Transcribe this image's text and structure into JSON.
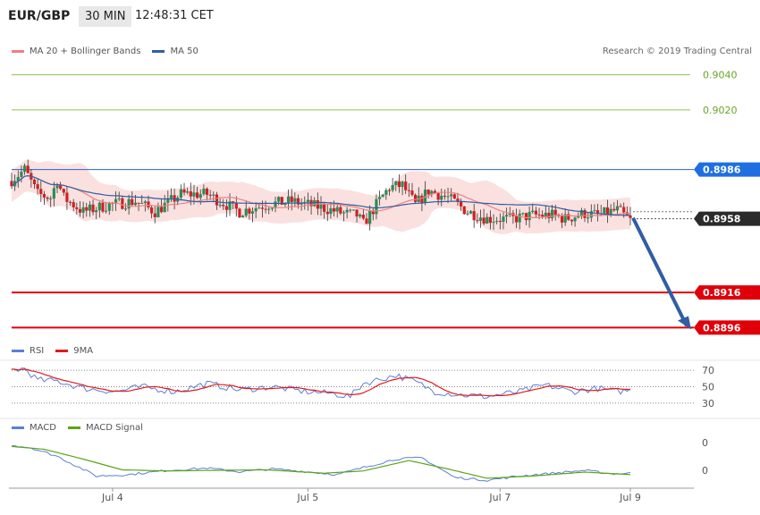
{
  "header": {
    "symbol": "EUR/GBP",
    "timeframe": "30 MIN",
    "time": "12:48:31 CET"
  },
  "legend_price": {
    "ma20_label": "MA 20 + Bollinger Bands",
    "ma50_label": "MA 50",
    "ma20_color": "#f08080",
    "ma50_color": "#2f5f9f"
  },
  "copyright": "Research © 2019 Trading Central",
  "legend_rsi": {
    "rsi_label": "RSI",
    "ma_label": "9MA",
    "rsi_color": "#5b7fd6",
    "ma_color": "#e21b1b"
  },
  "legend_macd": {
    "macd_label": "MACD",
    "signal_label": "MACD Signal",
    "macd_color": "#5b7fd6",
    "signal_color": "#5aa514"
  },
  "levels": {
    "green": [
      "0.9040",
      "0.9020"
    ],
    "blue": "0.8986",
    "current": "0.8958",
    "red": [
      "0.8916",
      "0.8896"
    ]
  },
  "rsi_ticks": [
    "70",
    "50",
    "30"
  ],
  "macd_ticks": [
    "0",
    "0"
  ],
  "x_ticks": [
    "Jul 4",
    "Jul 5",
    "Jul 7",
    "Jul 9"
  ],
  "chart_data": {
    "type": "candlestick",
    "title": "EUR/GBP 30 MIN",
    "y_range": [
      0.8884,
      0.9052
    ],
    "levels": {
      "resistance": [
        0.904,
        0.902
      ],
      "pivot": 0.8986,
      "last": 0.8958,
      "targets": [
        0.8916,
        0.8896
      ]
    },
    "close_anchors": [
      [
        0,
        0.898
      ],
      [
        4,
        0.8986
      ],
      [
        8,
        0.8972
      ],
      [
        12,
        0.897
      ],
      [
        14,
        0.898
      ],
      [
        16,
        0.897
      ],
      [
        22,
        0.8962
      ],
      [
        30,
        0.8966
      ],
      [
        38,
        0.8968
      ],
      [
        44,
        0.8962
      ],
      [
        52,
        0.8972
      ],
      [
        60,
        0.8972
      ],
      [
        70,
        0.8962
      ],
      [
        78,
        0.8966
      ],
      [
        86,
        0.8968
      ],
      [
        96,
        0.8964
      ],
      [
        102,
        0.8961
      ],
      [
        106,
        0.896
      ],
      [
        108,
        0.8955
      ],
      [
        112,
        0.8966
      ],
      [
        116,
        0.8976
      ],
      [
        120,
        0.8977
      ],
      [
        124,
        0.8966
      ],
      [
        128,
        0.8974
      ],
      [
        134,
        0.897
      ],
      [
        140,
        0.8962
      ],
      [
        146,
        0.8958
      ],
      [
        154,
        0.8958
      ],
      [
        160,
        0.896
      ],
      [
        166,
        0.896
      ],
      [
        170,
        0.8958
      ],
      [
        176,
        0.8961
      ],
      [
        180,
        0.896
      ],
      [
        186,
        0.8963
      ],
      [
        190,
        0.8957
      ]
    ],
    "rsi_y_range": [
      20,
      80
    ],
    "rsi_anchors": [
      [
        0,
        70
      ],
      [
        4,
        72
      ],
      [
        8,
        58
      ],
      [
        14,
        57
      ],
      [
        22,
        48
      ],
      [
        32,
        44
      ],
      [
        40,
        50
      ],
      [
        50,
        44
      ],
      [
        60,
        54
      ],
      [
        70,
        46
      ],
      [
        80,
        50
      ],
      [
        90,
        44
      ],
      [
        98,
        42
      ],
      [
        104,
        38
      ],
      [
        108,
        54
      ],
      [
        112,
        58
      ],
      [
        118,
        64
      ],
      [
        124,
        56
      ],
      [
        130,
        44
      ],
      [
        138,
        40
      ],
      [
        146,
        38
      ],
      [
        156,
        44
      ],
      [
        164,
        52
      ],
      [
        172,
        44
      ],
      [
        180,
        48
      ],
      [
        186,
        44
      ],
      [
        190,
        46
      ]
    ],
    "macd_y_range": [
      -1,
      1
    ],
    "macd_anchors": [
      [
        0,
        0.5
      ],
      [
        6,
        0.4
      ],
      [
        14,
        0.1
      ],
      [
        26,
        -0.6
      ],
      [
        36,
        -0.55
      ],
      [
        48,
        -0.4
      ],
      [
        60,
        -0.32
      ],
      [
        70,
        -0.45
      ],
      [
        80,
        -0.35
      ],
      [
        90,
        -0.44
      ],
      [
        100,
        -0.55
      ],
      [
        108,
        -0.3
      ],
      [
        118,
        0.0
      ],
      [
        126,
        0.05
      ],
      [
        136,
        -0.65
      ],
      [
        146,
        -0.75
      ],
      [
        156,
        -0.6
      ],
      [
        166,
        -0.5
      ],
      [
        176,
        -0.4
      ],
      [
        184,
        -0.52
      ],
      [
        190,
        -0.5
      ]
    ],
    "signal_anchors": [
      [
        0,
        0.45
      ],
      [
        10,
        0.35
      ],
      [
        22,
        0.0
      ],
      [
        34,
        -0.38
      ],
      [
        48,
        -0.42
      ],
      [
        62,
        -0.4
      ],
      [
        78,
        -0.38
      ],
      [
        96,
        -0.5
      ],
      [
        108,
        -0.42
      ],
      [
        122,
        -0.05
      ],
      [
        134,
        -0.35
      ],
      [
        146,
        -0.68
      ],
      [
        160,
        -0.6
      ],
      [
        176,
        -0.46
      ],
      [
        190,
        -0.55
      ]
    ]
  }
}
